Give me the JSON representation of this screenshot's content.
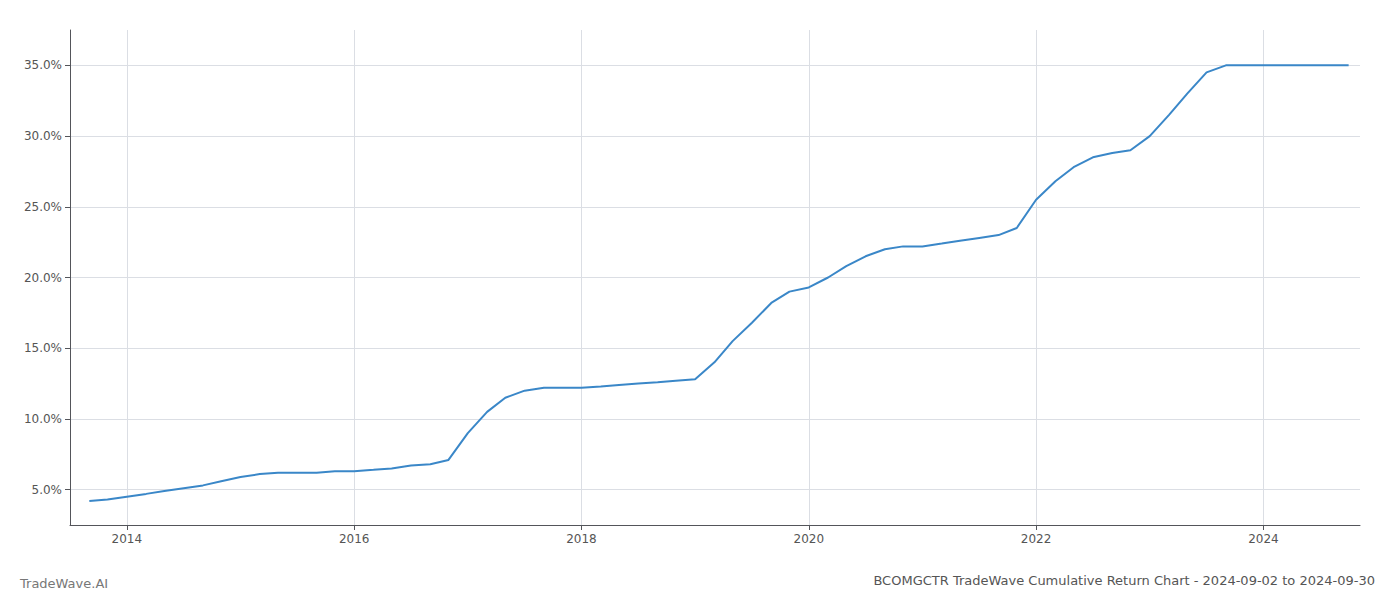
{
  "chart_data": {
    "type": "line",
    "title": "BCOMGCTR TradeWave Cumulative Return Chart - 2024-09-02 to 2024-09-30",
    "annotations": [
      "TradeWave.AI"
    ],
    "color": "#3a87c8",
    "grid": true,
    "x": [
      2013.67,
      2013.83,
      2014.0,
      2014.17,
      2014.33,
      2014.5,
      2014.67,
      2014.83,
      2015.0,
      2015.17,
      2015.33,
      2015.5,
      2015.67,
      2015.83,
      2016.0,
      2016.17,
      2016.33,
      2016.5,
      2016.67,
      2016.83,
      2017.0,
      2017.17,
      2017.33,
      2017.5,
      2017.67,
      2017.83,
      2018.0,
      2018.17,
      2018.33,
      2018.5,
      2018.67,
      2018.83,
      2019.0,
      2019.17,
      2019.33,
      2019.5,
      2019.67,
      2019.83,
      2020.0,
      2020.17,
      2020.33,
      2020.5,
      2020.67,
      2020.83,
      2021.0,
      2021.17,
      2021.33,
      2021.5,
      2021.67,
      2021.83,
      2022.0,
      2022.17,
      2022.33,
      2022.5,
      2022.67,
      2022.83,
      2023.0,
      2023.17,
      2023.33,
      2023.5,
      2023.67,
      2023.83,
      2024.0,
      2024.17,
      2024.5,
      2024.75
    ],
    "values": [
      0.042,
      0.043,
      0.045,
      0.047,
      0.049,
      0.051,
      0.053,
      0.056,
      0.059,
      0.061,
      0.062,
      0.062,
      0.062,
      0.063,
      0.063,
      0.064,
      0.065,
      0.067,
      0.068,
      0.071,
      0.09,
      0.105,
      0.115,
      0.12,
      0.122,
      0.122,
      0.122,
      0.123,
      0.124,
      0.125,
      0.126,
      0.127,
      0.128,
      0.14,
      0.155,
      0.168,
      0.182,
      0.19,
      0.193,
      0.2,
      0.208,
      0.215,
      0.22,
      0.222,
      0.222,
      0.224,
      0.226,
      0.228,
      0.23,
      0.235,
      0.255,
      0.268,
      0.278,
      0.285,
      0.288,
      0.29,
      0.3,
      0.315,
      0.33,
      0.345,
      0.35,
      0.35,
      0.35,
      0.35,
      0.35,
      0.35
    ],
    "xlim": [
      2013.5,
      2024.85
    ],
    "xticks": [
      2014,
      2016,
      2018,
      2020,
      2022,
      2024
    ],
    "ylim": [
      0.025,
      0.375
    ],
    "yticks": [
      {
        "value": 0.05,
        "label": "5.0%"
      },
      {
        "value": 0.1,
        "label": "10.0%"
      },
      {
        "value": 0.15,
        "label": "15.0%"
      },
      {
        "value": 0.2,
        "label": "20.0%"
      },
      {
        "value": 0.25,
        "label": "25.0%"
      },
      {
        "value": 0.3,
        "label": "30.0%"
      },
      {
        "value": 0.35,
        "label": "35.0%"
      }
    ]
  }
}
